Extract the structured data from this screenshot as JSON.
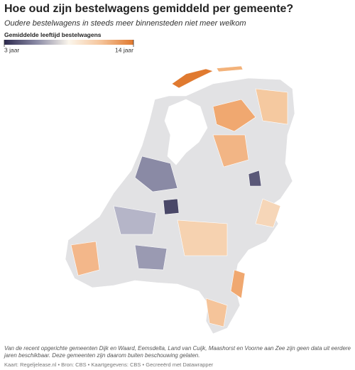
{
  "title": "Hoe oud zijn bestelwagens gemiddeld per gemeente?",
  "subtitle": "Oudere bestelwagens in steeds meer binnensteden niet meer welkom",
  "legend": {
    "title": "Gemiddelde leeftijd bestelwagens",
    "colors": [
      "#2d2a4e",
      "#8a8aa5",
      "#fbf6ec",
      "#f5c49a",
      "#e0782e"
    ],
    "min": {
      "value": 3,
      "label": "3 jaar"
    },
    "max": {
      "value": 14,
      "label": "14 jaar"
    }
  },
  "note": "Van de recent opgerichte gemeenten Dijk en Waard, Eemsdelta, Land van Cuijk, Maashorst en Voorne aan Zee zijn geen data uit eerdere jaren beschikbaar. Deze gemeenten zijn daarom buiten beschouwing gelaten.",
  "footer": "Kaart: Regeljelease.nl • Bron: CBS • Kaartgegevens: CBS • Gecreeërd met Datawrapper"
}
